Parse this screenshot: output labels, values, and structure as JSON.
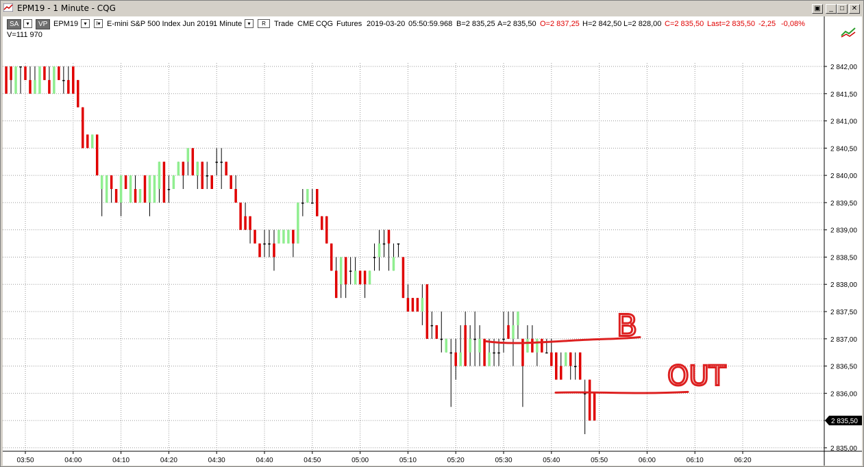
{
  "window": {
    "title": "EPM19 - 1 Minute - CQG"
  },
  "header": {
    "sa_tag": "SA",
    "vp_tag": "VP",
    "symbol": "EPM19",
    "description": "E-mini S&P 500 Index Jun 2019",
    "interval": "1 Minute",
    "r_button": "R",
    "trade": "Trade",
    "exchange": "CME",
    "provider": "CQG",
    "type": "Futures",
    "date": "2019-03-20",
    "time": "05:50:59.968",
    "bid": "B=2 835,25",
    "ask": "A=2 835,50",
    "open": "O=2 837,25",
    "high": "H=2 842,50",
    "low": "L=2 828,00",
    "close": "C=2 835,50",
    "last": "Last=2 835,50",
    "change": "-2,25",
    "change_pct": "-0,08%",
    "volume": "V=111 970"
  },
  "colors": {
    "up": "#90ee90",
    "down": "#e00000",
    "neutral": "#000000",
    "annotation": "#dd2020",
    "grid": "#9a9a9a"
  },
  "chart_data": {
    "type": "bar",
    "style": "open-close bars with high-low wicks",
    "symbol": "EPM19",
    "interval": "1 Minute",
    "ylim": [
      2834.9,
      2842.3
    ],
    "y_ticks": [
      "2 835,00",
      "2 835,50",
      "2 836,00",
      "2 836,50",
      "2 837,00",
      "2 837,50",
      "2 838,00",
      "2 838,50",
      "2 839,00",
      "2 839,50",
      "2 840,00",
      "2 840,50",
      "2 841,00",
      "2 841,50",
      "2 842,00"
    ],
    "x_ticks": [
      "03:50",
      "04:00",
      "04:10",
      "04:20",
      "04:30",
      "04:40",
      "04:50",
      "05:00",
      "05:10",
      "05:20",
      "05:30",
      "05:40",
      "05:50",
      "06:00",
      "06:10",
      "06:20"
    ],
    "x_range": [
      "03:46",
      "06:35"
    ],
    "last_price_label": "2 835,50",
    "last_price": 2835.5,
    "grid": true,
    "bars": [
      [
        "03:46",
        2842.0,
        2842.0,
        2841.5,
        2841.5
      ],
      [
        "03:47",
        2842.0,
        2842.0,
        2841.5,
        2841.75
      ],
      [
        "03:48",
        2841.5,
        2842.0,
        2841.5,
        2842.0
      ],
      [
        "03:49",
        2842.0,
        2842.0,
        2841.5,
        2842.0
      ],
      [
        "03:50",
        2842.0,
        2842.0,
        2841.75,
        2841.75
      ],
      [
        "03:51",
        2841.75,
        2842.0,
        2841.5,
        2841.5
      ],
      [
        "03:52",
        2841.5,
        2842.0,
        2841.5,
        2841.75
      ],
      [
        "03:53",
        2841.5,
        2842.0,
        2841.5,
        2842.0
      ],
      [
        "03:54",
        2842.0,
        2842.0,
        2841.75,
        2841.75
      ],
      [
        "03:55",
        2841.75,
        2842.0,
        2841.5,
        2841.5
      ],
      [
        "03:56",
        2841.5,
        2842.0,
        2841.5,
        2842.0
      ],
      [
        "03:57",
        2842.0,
        2842.0,
        2841.75,
        2841.75
      ],
      [
        "03:58",
        2841.75,
        2842.0,
        2841.5,
        2841.75
      ],
      [
        "03:59",
        2841.75,
        2842.0,
        2841.5,
        2841.5
      ],
      [
        "04:00",
        2842.0,
        2842.0,
        2841.5,
        2841.5
      ],
      [
        "04:01",
        2841.75,
        2841.75,
        2841.25,
        2841.25
      ],
      [
        "04:02",
        2841.25,
        2841.25,
        2840.5,
        2840.5
      ],
      [
        "04:03",
        2840.75,
        2840.75,
        2840.5,
        2840.5
      ],
      [
        "04:04",
        2840.5,
        2840.75,
        2840.5,
        2840.75
      ],
      [
        "04:05",
        2840.75,
        2840.75,
        2840.0,
        2840.0
      ],
      [
        "04:06",
        2839.75,
        2840.0,
        2839.25,
        2840.0
      ],
      [
        "04:07",
        2839.5,
        2840.0,
        2839.5,
        2840.0
      ],
      [
        "04:08",
        2840.0,
        2840.0,
        2839.5,
        2839.75
      ],
      [
        "04:09",
        2839.75,
        2839.75,
        2839.5,
        2839.5
      ],
      [
        "04:10",
        2839.5,
        2840.0,
        2839.25,
        2840.0
      ],
      [
        "04:11",
        2840.0,
        2840.0,
        2839.75,
        2839.75
      ],
      [
        "04:12",
        2839.5,
        2840.0,
        2839.5,
        2840.0
      ],
      [
        "04:13",
        2839.75,
        2840.0,
        2839.5,
        2839.5
      ],
      [
        "04:14",
        2839.5,
        2839.75,
        2839.5,
        2839.75
      ],
      [
        "04:15",
        2840.0,
        2840.0,
        2839.5,
        2839.5
      ],
      [
        "04:16",
        2839.5,
        2840.0,
        2839.25,
        2840.0
      ],
      [
        "04:17",
        2839.5,
        2840.0,
        2839.5,
        2840.0
      ],
      [
        "04:18",
        2839.75,
        2840.25,
        2839.5,
        2840.25
      ],
      [
        "04:19",
        2840.25,
        2840.25,
        2839.5,
        2839.5
      ],
      [
        "04:20",
        2839.75,
        2840.0,
        2839.5,
        2839.75
      ],
      [
        "04:21",
        2839.75,
        2840.0,
        2839.75,
        2840.0
      ],
      [
        "04:22",
        2840.0,
        2840.25,
        2840.0,
        2840.25
      ],
      [
        "04:23",
        2840.25,
        2840.25,
        2839.75,
        2840.0
      ],
      [
        "04:24",
        2840.25,
        2840.5,
        2840.0,
        2840.5
      ],
      [
        "04:25",
        2840.5,
        2840.5,
        2840.0,
        2840.0
      ],
      [
        "04:26",
        2840.0,
        2840.25,
        2839.75,
        2840.25
      ],
      [
        "04:27",
        2840.25,
        2840.25,
        2839.75,
        2839.75
      ],
      [
        "04:28",
        2840.0,
        2840.25,
        2839.75,
        2840.0
      ],
      [
        "04:29",
        2840.0,
        2840.0,
        2839.75,
        2839.75
      ],
      [
        "04:30",
        2840.25,
        2840.5,
        2840.0,
        2840.25
      ],
      [
        "04:31",
        2840.25,
        2840.5,
        2839.75,
        2840.25
      ],
      [
        "04:32",
        2840.25,
        2840.25,
        2840.0,
        2840.0
      ],
      [
        "04:33",
        2840.0,
        2840.0,
        2839.75,
        2839.75
      ],
      [
        "04:34",
        2839.75,
        2840.0,
        2839.5,
        2839.5
      ],
      [
        "04:35",
        2839.5,
        2839.5,
        2839.0,
        2839.0
      ],
      [
        "04:36",
        2839.25,
        2839.5,
        2839.0,
        2839.0
      ],
      [
        "04:37",
        2839.25,
        2839.25,
        2838.75,
        2839.0
      ],
      [
        "04:38",
        2839.0,
        2839.0,
        2838.75,
        2838.75
      ],
      [
        "04:39",
        2838.75,
        2838.75,
        2838.5,
        2838.5
      ],
      [
        "04:40",
        2838.75,
        2839.0,
        2838.5,
        2838.75
      ],
      [
        "04:41",
        2838.75,
        2839.0,
        2838.5,
        2838.75
      ],
      [
        "04:42",
        2838.75,
        2839.0,
        2838.25,
        2838.5
      ],
      [
        "04:43",
        2838.75,
        2839.0,
        2838.75,
        2839.0
      ],
      [
        "04:44",
        2838.75,
        2839.0,
        2838.75,
        2839.0
      ],
      [
        "04:45",
        2838.75,
        2839.0,
        2838.75,
        2839.0
      ],
      [
        "04:46",
        2839.0,
        2839.0,
        2838.5,
        2838.75
      ],
      [
        "04:47",
        2838.75,
        2839.5,
        2838.75,
        2839.5
      ],
      [
        "04:48",
        2839.5,
        2839.75,
        2839.25,
        2839.5
      ],
      [
        "04:49",
        2839.5,
        2839.75,
        2839.5,
        2839.75
      ],
      [
        "04:50",
        2839.5,
        2839.75,
        2839.5,
        2839.5
      ],
      [
        "04:51",
        2839.75,
        2839.75,
        2839.25,
        2839.25
      ],
      [
        "04:52",
        2839.25,
        2839.25,
        2839.0,
        2839.0
      ],
      [
        "04:53",
        2839.25,
        2839.25,
        2838.75,
        2838.75
      ],
      [
        "04:54",
        2838.75,
        2838.75,
        2838.25,
        2838.25
      ],
      [
        "04:55",
        2838.25,
        2838.5,
        2837.75,
        2837.75
      ],
      [
        "04:56",
        2838.0,
        2838.5,
        2837.75,
        2838.5
      ],
      [
        "04:57",
        2838.5,
        2838.5,
        2837.75,
        2838.0
      ],
      [
        "04:58",
        2838.25,
        2838.5,
        2838.0,
        2838.25
      ],
      [
        "04:59",
        2838.0,
        2838.5,
        2838.0,
        2838.25
      ],
      [
        "05:00",
        2838.25,
        2838.25,
        2838.0,
        2838.0
      ],
      [
        "05:01",
        2838.25,
        2838.25,
        2837.75,
        2838.0
      ],
      [
        "05:02",
        2838.0,
        2838.25,
        2838.0,
        2838.25
      ],
      [
        "05:03",
        2838.5,
        2838.75,
        2838.25,
        2838.5
      ],
      [
        "05:04",
        2838.5,
        2839.0,
        2838.25,
        2838.75
      ],
      [
        "05:05",
        2838.75,
        2839.0,
        2838.5,
        2838.75
      ],
      [
        "05:06",
        2839.0,
        2839.0,
        2838.25,
        2838.75
      ],
      [
        "05:07",
        2838.25,
        2838.75,
        2838.25,
        2838.5
      ],
      [
        "05:08",
        2838.75,
        2838.75,
        2838.5,
        2838.75
      ],
      [
        "05:09",
        2838.5,
        2838.5,
        2837.75,
        2837.75
      ],
      [
        "05:10",
        2837.75,
        2838.0,
        2837.5,
        2837.5
      ],
      [
        "05:11",
        2837.75,
        2837.75,
        2837.5,
        2837.5
      ],
      [
        "05:12",
        2837.75,
        2837.75,
        2837.5,
        2837.5
      ],
      [
        "05:13",
        2837.5,
        2838.0,
        2837.25,
        2837.75
      ],
      [
        "05:14",
        2838.0,
        2838.0,
        2837.0,
        2837.0
      ],
      [
        "05:15",
        2837.25,
        2837.5,
        2837.0,
        2837.25
      ],
      [
        "05:16",
        2837.25,
        2837.25,
        2837.0,
        2837.0
      ],
      [
        "05:17",
        2837.0,
        2837.5,
        2836.75,
        2837.0
      ],
      [
        "05:18",
        2836.75,
        2837.0,
        2836.75,
        2837.0
      ],
      [
        "05:19",
        2836.75,
        2837.0,
        2835.75,
        2836.75
      ],
      [
        "05:20",
        2836.75,
        2837.0,
        2836.25,
        2836.5
      ],
      [
        "05:21",
        2836.5,
        2837.25,
        2836.5,
        2836.75
      ],
      [
        "05:22",
        2837.25,
        2837.5,
        2836.5,
        2836.5
      ],
      [
        "05:23",
        2836.75,
        2837.25,
        2836.5,
        2837.0
      ],
      [
        "05:24",
        2837.0,
        2837.5,
        2836.5,
        2837.0
      ],
      [
        "05:25",
        2836.75,
        2837.25,
        2836.5,
        2837.0
      ],
      [
        "05:26",
        2837.0,
        2837.0,
        2836.5,
        2836.5
      ],
      [
        "05:27",
        2836.5,
        2837.0,
        2836.5,
        2836.75
      ],
      [
        "05:28",
        2836.75,
        2837.0,
        2836.5,
        2836.75
      ],
      [
        "05:29",
        2836.75,
        2837.0,
        2836.5,
        2836.75
      ],
      [
        "05:30",
        2837.0,
        2837.5,
        2836.75,
        2837.0
      ],
      [
        "05:31",
        2837.25,
        2837.5,
        2837.0,
        2837.0
      ],
      [
        "05:32",
        2837.0,
        2837.5,
        2836.5,
        2837.25
      ],
      [
        "05:33",
        2837.25,
        2837.5,
        2837.0,
        2837.5
      ],
      [
        "05:34",
        2837.0,
        2837.0,
        2835.75,
        2836.5
      ],
      [
        "05:35",
        2836.75,
        2837.25,
        2836.75,
        2837.0
      ],
      [
        "05:36",
        2837.0,
        2837.25,
        2836.75,
        2836.75
      ],
      [
        "05:37",
        2836.75,
        2837.0,
        2836.5,
        2837.0
      ],
      [
        "05:38",
        2837.0,
        2837.0,
        2836.75,
        2836.75
      ],
      [
        "05:39",
        2836.75,
        2837.0,
        2836.75,
        2836.75
      ],
      [
        "05:40",
        2836.75,
        2837.0,
        2836.5,
        2836.5
      ],
      [
        "05:41",
        2836.75,
        2836.75,
        2836.25,
        2836.25
      ],
      [
        "05:42",
        2836.5,
        2836.75,
        2836.25,
        2836.25
      ],
      [
        "05:43",
        2836.5,
        2836.75,
        2836.5,
        2836.75
      ],
      [
        "05:44",
        2836.75,
        2836.75,
        2836.25,
        2836.5
      ],
      [
        "05:45",
        2836.5,
        2836.75,
        2836.25,
        2836.5
      ],
      [
        "05:46",
        2836.75,
        2836.75,
        2836.25,
        2836.25
      ],
      [
        "05:47",
        2836.0,
        2836.25,
        2835.25,
        2836.0
      ],
      [
        "05:48",
        2836.25,
        2836.25,
        2835.5,
        2835.5
      ],
      [
        "05:49",
        2836.0,
        2836.0,
        2835.5,
        2835.5
      ]
    ]
  },
  "annotations": {
    "b_label": "B",
    "out_label": "OUT",
    "b_price": 2836.93,
    "out_price": 2836.0
  }
}
